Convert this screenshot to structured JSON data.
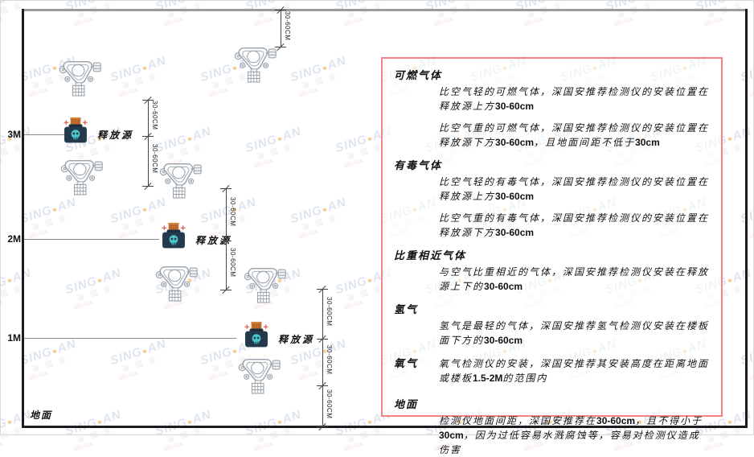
{
  "watermark": {
    "brand_head": "SING",
    "brand_dot": "●",
    "brand_tail": "AN",
    "sub": "深 国 安",
    "code": "661434"
  },
  "diagram": {
    "ground_label": "地面",
    "dim_label": "30-60CM",
    "release_source_label": "释放源",
    "levels": [
      {
        "label": "3M"
      },
      {
        "label": "2M"
      },
      {
        "label": "1M"
      }
    ],
    "colors": {
      "bottle_body": "#24394b",
      "bottle_cap": "#c2702f",
      "skull": "#4ac6ca",
      "sparkle": "#e25b4a",
      "detector_stroke": "#9aa3ab",
      "panel_border": "#f58383"
    }
  },
  "info_panel": {
    "sections": [
      {
        "heading": "可燃气体",
        "paragraphs": [
          [
            {
              "t": "比空气轻的可燃气体，深国安推荐检测仪的安装位置在释放源上方"
            },
            {
              "t": "30-60cm",
              "b": true
            }
          ],
          [
            {
              "t": "比空气重的可燃气体，深国安推荐检测仪的安装位置在释放源下方"
            },
            {
              "t": "30-60cm",
              "b": true
            },
            {
              "t": "，且地面间距不低于"
            },
            {
              "t": "30cm",
              "b": true
            }
          ]
        ]
      },
      {
        "heading": "有毒气体",
        "paragraphs": [
          [
            {
              "t": "比空气轻的有毒气体，深国安推荐检测仪的安装位置在释放源上方"
            },
            {
              "t": "30-60cm",
              "b": true
            }
          ],
          [
            {
              "t": "比空气重的有毒气体，深国安推荐检测仪的安装位置在释放源下方"
            },
            {
              "t": "30-60cm",
              "b": true
            }
          ]
        ]
      },
      {
        "heading": "比重相近气体",
        "paragraphs": [
          [
            {
              "t": "与空气比重相近的气体，深国安推荐检测仪安装在释放源上下的"
            },
            {
              "t": "30-60cm",
              "b": true
            }
          ]
        ]
      },
      {
        "heading": "氢气",
        "paragraphs": [
          [
            {
              "t": "氢气是最轻的气体，深国安推荐氢气检测仪安装在楼板面下方的"
            },
            {
              "t": "30-60cm",
              "b": true
            }
          ]
        ]
      },
      {
        "heading": "氧气",
        "inline": true,
        "paragraphs": [
          [
            {
              "t": "氧气检测仪的安装，深国安推荐其安装高度在距离地面或楼板"
            },
            {
              "t": "1.5-2M",
              "b": true
            },
            {
              "t": "的范围内"
            }
          ]
        ]
      },
      {
        "heading": "地面",
        "paragraphs": [
          [
            {
              "t": "检测仪地面间距，深国安推荐在"
            },
            {
              "t": "30-60cm",
              "b": true
            },
            {
              "t": "，且不得小于"
            },
            {
              "t": "30cm",
              "b": true
            },
            {
              "t": "，因为过低容易水溅腐蚀等，容易对检测仪造成伤害"
            }
          ]
        ]
      }
    ]
  }
}
